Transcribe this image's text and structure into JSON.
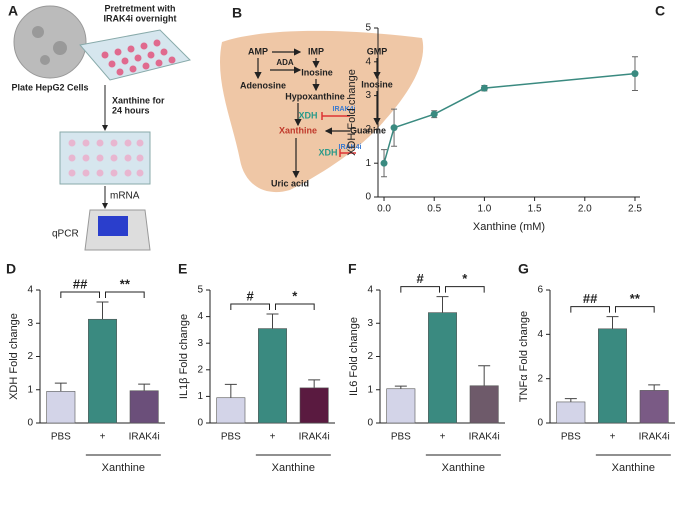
{
  "diagram_a": {
    "panel_label": "A",
    "pretreatment": [
      "Pretretment with",
      "IRAK4i overnight"
    ],
    "plate": "Plate HepG2 Cells",
    "xanthine": [
      "Xanthine for",
      "24 hours"
    ],
    "mrna": "mRNA",
    "qpcr": "qPCR"
  },
  "diagram_b": {
    "panel_label": "B",
    "labels": [
      "AMP",
      "IMP",
      "GMP",
      "ADA",
      "Adenosine",
      "Inosine",
      "Inosine",
      "Hypoxanthine",
      "XDH",
      "IRAK4i",
      "Xanthine",
      "Guanine",
      "XDH",
      "IRAK4i",
      "Uric acid"
    ]
  },
  "chart_data": [
    {
      "type": "line",
      "panel_label": "C",
      "x_label": "Xanthine (mM)",
      "y_label": "XDH Fold change",
      "x": [
        0,
        0.1,
        0.5,
        1,
        2.5
      ],
      "values": [
        1,
        2.05,
        2.45,
        3.22,
        3.65
      ],
      "errors": [
        0.4,
        0.55,
        0.1,
        0.08,
        0.5
      ],
      "color": "#3a8a80",
      "xlim": [
        -0.06,
        2.55
      ],
      "xticks": [
        {
          "value": 0,
          "label": "0.0"
        },
        0.5,
        {
          "value": 1,
          "label": "1.0"
        },
        1.5,
        {
          "value": 2,
          "label": "2.0"
        },
        2.5
      ],
      "ylim": [
        0,
        5
      ],
      "yticks": [
        0,
        1,
        2,
        3,
        4,
        5
      ]
    },
    {
      "type": "bar",
      "panel_label": "D",
      "y_label": "XDH Fold change",
      "categories": [
        "PBS",
        "+",
        "IRAK4i"
      ],
      "group_label": "Xanthine",
      "values": [
        0.95,
        3.12,
        0.97
      ],
      "errors": [
        0.25,
        0.52,
        0.2
      ],
      "colors": [
        "#d3d4e8",
        "#3a8a80",
        "#6b4f7a"
      ],
      "significance": [
        "##",
        "**"
      ],
      "ylim": [
        0,
        4
      ],
      "yticks": [
        0,
        1,
        2,
        3,
        4
      ]
    },
    {
      "type": "bar",
      "panel_label": "E",
      "y_label": "IL1β Fold change",
      "categories": [
        "PBS",
        "+",
        "IRAK4i"
      ],
      "group_label": "Xanthine",
      "values": [
        0.95,
        3.55,
        1.32
      ],
      "errors": [
        0.5,
        0.55,
        0.3
      ],
      "colors": [
        "#d3d4e8",
        "#3a8a80",
        "#5a1a40"
      ],
      "significance": [
        "#",
        "*"
      ],
      "ylim": [
        0,
        5
      ],
      "yticks": [
        0,
        1,
        2,
        3,
        4,
        5
      ]
    },
    {
      "type": "bar",
      "panel_label": "F",
      "y_label": "IL6 Fold change",
      "categories": [
        "PBS",
        "+",
        "IRAK4i"
      ],
      "group_label": "Xanthine",
      "values": [
        1.03,
        3.32,
        1.12
      ],
      "errors": [
        0.08,
        0.48,
        0.6
      ],
      "colors": [
        "#d3d4e8",
        "#3a8a80",
        "#6e5a6a"
      ],
      "significance": [
        "#",
        "*"
      ],
      "ylim": [
        0,
        4
      ],
      "yticks": [
        0,
        1,
        2,
        3,
        4
      ]
    },
    {
      "type": "bar",
      "panel_label": "G",
      "y_label": "TNFα Fold change",
      "categories": [
        "PBS",
        "+",
        "IRAK4i"
      ],
      "group_label": "Xanthine",
      "values": [
        0.95,
        4.25,
        1.47
      ],
      "errors": [
        0.15,
        0.55,
        0.25
      ],
      "colors": [
        "#d3d4e8",
        "#3a8a80",
        "#7a5a85"
      ],
      "significance": [
        "##",
        "**"
      ],
      "ylim": [
        0,
        6
      ],
      "yticks": [
        0,
        2,
        4,
        6
      ]
    }
  ]
}
